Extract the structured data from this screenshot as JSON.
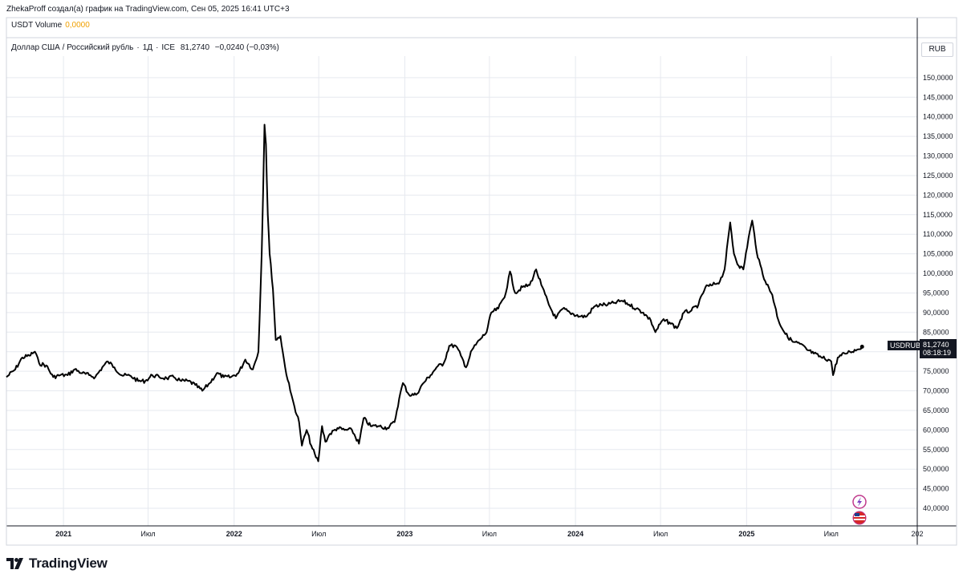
{
  "header": {
    "author_line": "ZhekaProff создал(а) график на TradingView.com, Сен 05, 2025 16:41 UTC+3"
  },
  "volume_pane": {
    "label": "USDT Volume",
    "value": "0,0000"
  },
  "series_info": {
    "name": "Доллар США / Российский рубль",
    "interval": "1Д",
    "exchange": "ICE",
    "last": "81,2740",
    "change": "−0,0240 (−0,03%)"
  },
  "currency_badge": "RUB",
  "price_tag": {
    "ticker": "USDRUB",
    "price": "81,2740",
    "countdown": "08:18:19"
  },
  "footer": {
    "brand": "TradingView"
  },
  "colors": {
    "line": "#000000",
    "grid": "#e6e9ef",
    "axis_text": "#131722",
    "volume_value": "#f0a000"
  },
  "chart_data": {
    "type": "line",
    "series": [
      {
        "name": "USDRUB",
        "points": [
          [
            "2020-09-01",
            73.5
          ],
          [
            "2020-09-20",
            75.5
          ],
          [
            "2020-10-05",
            78.5
          ],
          [
            "2020-10-20",
            79.0
          ],
          [
            "2020-11-01",
            80.0
          ],
          [
            "2020-11-10",
            77.0
          ],
          [
            "2020-11-25",
            76.5
          ],
          [
            "2020-12-10",
            73.5
          ],
          [
            "2020-12-25",
            74.0
          ],
          [
            "2021-01-10",
            74.0
          ],
          [
            "2021-01-25",
            75.5
          ],
          [
            "2021-02-10",
            74.5
          ],
          [
            "2021-02-25",
            74.0
          ],
          [
            "2021-03-10",
            73.5
          ],
          [
            "2021-03-25",
            76.0
          ],
          [
            "2021-04-06",
            77.5
          ],
          [
            "2021-04-20",
            76.0
          ],
          [
            "2021-05-05",
            74.0
          ],
          [
            "2021-05-25",
            73.8
          ],
          [
            "2021-06-10",
            72.5
          ],
          [
            "2021-06-25",
            72.5
          ],
          [
            "2021-07-10",
            74.0
          ],
          [
            "2021-07-25",
            73.5
          ],
          [
            "2021-08-10",
            73.2
          ],
          [
            "2021-08-25",
            73.5
          ],
          [
            "2021-09-10",
            72.5
          ],
          [
            "2021-09-25",
            72.5
          ],
          [
            "2021-10-10",
            71.5
          ],
          [
            "2021-10-25",
            70.0
          ],
          [
            "2021-11-10",
            72.0
          ],
          [
            "2021-11-25",
            74.5
          ],
          [
            "2021-12-10",
            73.5
          ],
          [
            "2021-12-25",
            73.5
          ],
          [
            "2022-01-10",
            74.5
          ],
          [
            "2022-01-25",
            78.0
          ],
          [
            "2022-02-10",
            75.5
          ],
          [
            "2022-02-22",
            80.0
          ],
          [
            "2022-03-01",
            105.0
          ],
          [
            "2022-03-07",
            138.0
          ],
          [
            "2022-03-10",
            133.0
          ],
          [
            "2022-03-14",
            115.0
          ],
          [
            "2022-03-18",
            105.0
          ],
          [
            "2022-03-25",
            96.0
          ],
          [
            "2022-03-31",
            83.0
          ],
          [
            "2022-04-10",
            84.0
          ],
          [
            "2022-04-20",
            76.0
          ],
          [
            "2022-05-01",
            70.0
          ],
          [
            "2022-05-10",
            66.0
          ],
          [
            "2022-05-20",
            62.0
          ],
          [
            "2022-05-26",
            56.0
          ],
          [
            "2022-06-05",
            60.0
          ],
          [
            "2022-06-15",
            56.0
          ],
          [
            "2022-06-25",
            53.0
          ],
          [
            "2022-06-30",
            52.0
          ],
          [
            "2022-07-08",
            61.0
          ],
          [
            "2022-07-15",
            57.0
          ],
          [
            "2022-07-25",
            59.0
          ],
          [
            "2022-08-10",
            60.5
          ],
          [
            "2022-08-25",
            60.0
          ],
          [
            "2022-09-10",
            60.0
          ],
          [
            "2022-09-25",
            56.5
          ],
          [
            "2022-10-05",
            63.0
          ],
          [
            "2022-10-20",
            61.0
          ],
          [
            "2022-11-05",
            61.0
          ],
          [
            "2022-11-25",
            60.5
          ],
          [
            "2022-12-10",
            62.0
          ],
          [
            "2022-12-20",
            68.0
          ],
          [
            "2022-12-28",
            72.0
          ],
          [
            "2023-01-10",
            69.0
          ],
          [
            "2023-01-25",
            69.0
          ],
          [
            "2023-02-10",
            72.0
          ],
          [
            "2023-02-25",
            74.0
          ],
          [
            "2023-03-10",
            76.0
          ],
          [
            "2023-03-25",
            77.0
          ],
          [
            "2023-04-06",
            81.5
          ],
          [
            "2023-04-20",
            81.5
          ],
          [
            "2023-05-01",
            79.0
          ],
          [
            "2023-05-12",
            76.0
          ],
          [
            "2023-05-25",
            80.5
          ],
          [
            "2023-06-10",
            83.0
          ],
          [
            "2023-06-25",
            85.0
          ],
          [
            "2023-07-05",
            90.0
          ],
          [
            "2023-07-20",
            91.0
          ],
          [
            "2023-08-05",
            95.0
          ],
          [
            "2023-08-14",
            100.5
          ],
          [
            "2023-08-25",
            95.0
          ],
          [
            "2023-09-10",
            96.5
          ],
          [
            "2023-09-25",
            97.0
          ],
          [
            "2023-10-09",
            101.0
          ],
          [
            "2023-10-20",
            97.0
          ],
          [
            "2023-11-05",
            92.0
          ],
          [
            "2023-11-20",
            88.5
          ],
          [
            "2023-12-05",
            91.0
          ],
          [
            "2023-12-20",
            90.0
          ],
          [
            "2024-01-10",
            89.0
          ],
          [
            "2024-01-25",
            89.0
          ],
          [
            "2024-02-10",
            91.5
          ],
          [
            "2024-02-25",
            92.0
          ],
          [
            "2024-03-10",
            92.0
          ],
          [
            "2024-03-25",
            92.5
          ],
          [
            "2024-04-10",
            93.0
          ],
          [
            "2024-04-25",
            92.0
          ],
          [
            "2024-05-10",
            91.0
          ],
          [
            "2024-05-25",
            90.0
          ],
          [
            "2024-06-10",
            88.0
          ],
          [
            "2024-06-20",
            85.0
          ],
          [
            "2024-07-05",
            88.0
          ],
          [
            "2024-07-20",
            87.5
          ],
          [
            "2024-08-05",
            86.0
          ],
          [
            "2024-08-20",
            90.0
          ],
          [
            "2024-09-05",
            90.5
          ],
          [
            "2024-09-20",
            92.0
          ],
          [
            "2024-10-05",
            96.5
          ],
          [
            "2024-10-20",
            97.0
          ],
          [
            "2024-11-05",
            98.0
          ],
          [
            "2024-11-15",
            101.0
          ],
          [
            "2024-11-27",
            113.0
          ],
          [
            "2024-12-05",
            105.0
          ],
          [
            "2024-12-15",
            102.0
          ],
          [
            "2024-12-25",
            101.0
          ],
          [
            "2025-01-05",
            109.0
          ],
          [
            "2025-01-13",
            113.5
          ],
          [
            "2025-01-25",
            104.0
          ],
          [
            "2025-02-10",
            98.0
          ],
          [
            "2025-02-25",
            94.5
          ],
          [
            "2025-03-10",
            88.0
          ],
          [
            "2025-03-25",
            84.5
          ],
          [
            "2025-04-10",
            82.5
          ],
          [
            "2025-04-25",
            82.0
          ],
          [
            "2025-05-10",
            80.5
          ],
          [
            "2025-05-25",
            79.5
          ],
          [
            "2025-06-10",
            78.5
          ],
          [
            "2025-06-25",
            78.0
          ],
          [
            "2025-07-01",
            77.5
          ],
          [
            "2025-07-05",
            74.0
          ],
          [
            "2025-07-15",
            78.5
          ],
          [
            "2025-07-30",
            79.5
          ],
          [
            "2025-08-10",
            80.0
          ],
          [
            "2025-08-25",
            80.5
          ],
          [
            "2025-09-05",
            81.274
          ]
        ]
      }
    ],
    "y_ticks": [
      "150,0000",
      "145,0000",
      "140,0000",
      "135,0000",
      "130,0000",
      "125,0000",
      "120,0000",
      "115,0000",
      "110,0000",
      "105,0000",
      "100,0000",
      "95,0000",
      "90,0000",
      "85,0000",
      "80,0000",
      "75,0000",
      "70,0000",
      "65,0000",
      "60,0000",
      "55,0000",
      "50,0000",
      "45,0000",
      "40,0000"
    ],
    "y_tick_values": [
      150,
      145,
      140,
      135,
      130,
      125,
      120,
      115,
      110,
      105,
      100,
      95,
      90,
      85,
      80,
      75,
      70,
      65,
      60,
      55,
      50,
      45,
      40
    ],
    "x_ticks": [
      {
        "date": "2021-01-01",
        "label": "2021"
      },
      {
        "date": "2021-07-01",
        "label": "Июл"
      },
      {
        "date": "2022-01-01",
        "label": "2022"
      },
      {
        "date": "2022-07-01",
        "label": "Июл"
      },
      {
        "date": "2023-01-01",
        "label": "2023"
      },
      {
        "date": "2023-07-01",
        "label": "Июл"
      },
      {
        "date": "2024-01-01",
        "label": "2024"
      },
      {
        "date": "2024-07-01",
        "label": "Июл"
      },
      {
        "date": "2025-01-01",
        "label": "2025"
      },
      {
        "date": "2025-07-01",
        "label": "Июл"
      },
      {
        "date": "2026-01-01",
        "label": "202"
      }
    ],
    "xlim": [
      "2020-09-01",
      "2026-01-01"
    ],
    "ylim": [
      35.5,
      155.5
    ],
    "grid": true,
    "price_axis": "right"
  }
}
